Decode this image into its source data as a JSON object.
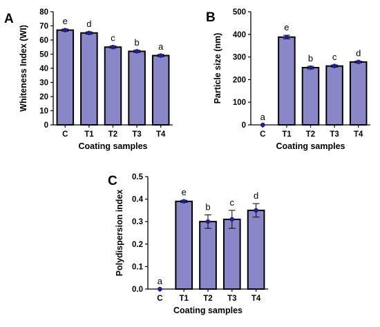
{
  "colors": {
    "bar_fill": "#8a87c9",
    "bar_stroke": "#000000",
    "marker": "#1c1f9c",
    "background": "#ffffff"
  },
  "chart_data": [
    {
      "panel": "A",
      "type": "bar",
      "categories": [
        "C",
        "T1",
        "T2",
        "T3",
        "T4"
      ],
      "values": [
        67,
        65,
        55,
        52,
        49
      ],
      "errors": [
        0.8,
        0.8,
        0.8,
        0.8,
        0.8
      ],
      "sig_labels": [
        "e",
        "d",
        "c",
        "b",
        "a"
      ],
      "xlabel": "Coating samples",
      "ylabel": "Whiteness Index (WI)",
      "ylim": [
        0,
        80
      ],
      "yticks": [
        0,
        10,
        20,
        30,
        40,
        50,
        60,
        70,
        80
      ],
      "ytick_labels": [
        "0",
        "10",
        "20",
        "30",
        "40",
        "50",
        "60",
        "70",
        "80"
      ],
      "grid": false,
      "legend": "none"
    },
    {
      "panel": "B",
      "type": "bar",
      "categories": [
        "C",
        "T1",
        "T2",
        "T3",
        "T4"
      ],
      "values": [
        0,
        388,
        253,
        260,
        278
      ],
      "errors": [
        0,
        8,
        6,
        5,
        4
      ],
      "sig_labels": [
        "a",
        "e",
        "b",
        "c",
        "d"
      ],
      "xlabel": "Coating samples",
      "ylabel": "Particle size (nm)",
      "ylim": [
        0,
        500
      ],
      "yticks": [
        0,
        100,
        200,
        300,
        400,
        500
      ],
      "ytick_labels": [
        "0",
        "100",
        "200",
        "300",
        "400",
        "500"
      ],
      "grid": false,
      "legend": "none"
    },
    {
      "panel": "C",
      "type": "bar",
      "categories": [
        "C",
        "T1",
        "T2",
        "T3",
        "T4"
      ],
      "values": [
        0,
        0.39,
        0.3,
        0.31,
        0.35
      ],
      "errors": [
        0,
        0.005,
        0.03,
        0.04,
        0.03
      ],
      "sig_labels": [
        "a",
        "e",
        "b",
        "c",
        "d"
      ],
      "xlabel": "Coating samples",
      "ylabel": "Polydispersion index",
      "ylim": [
        0,
        0.5
      ],
      "yticks": [
        0,
        0.1,
        0.2,
        0.3,
        0.4,
        0.5
      ],
      "ytick_labels": [
        "0.0",
        "0.1",
        "0.2",
        "0.3",
        "0.4",
        "0.5"
      ],
      "grid": false,
      "legend": "none"
    }
  ]
}
